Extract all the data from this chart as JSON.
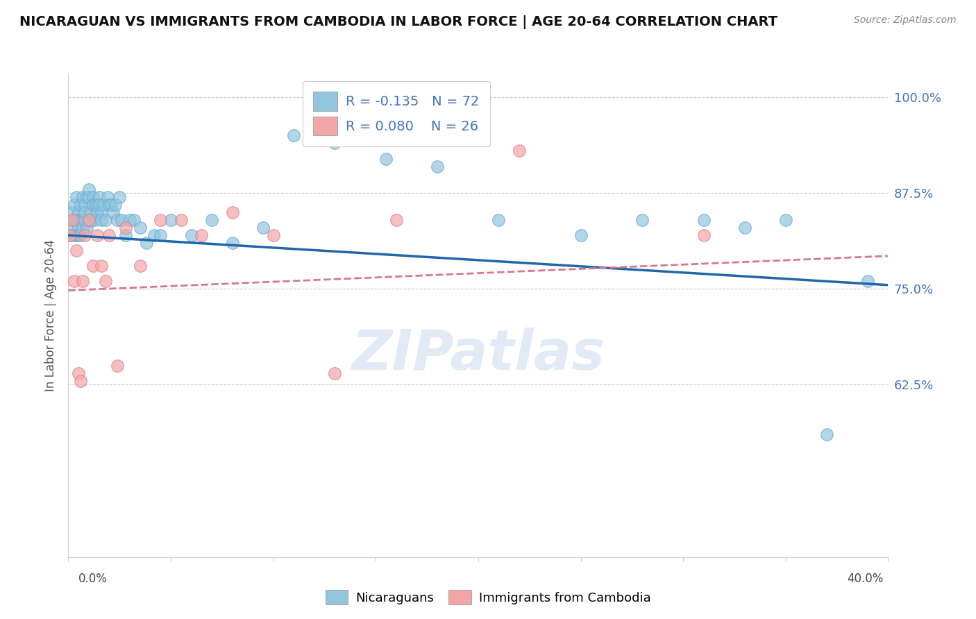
{
  "title": "NICARAGUAN VS IMMIGRANTS FROM CAMBODIA IN LABOR FORCE | AGE 20-64 CORRELATION CHART",
  "source": "Source: ZipAtlas.com",
  "ylabel": "In Labor Force | Age 20-64",
  "ytick_values": [
    1.0,
    0.875,
    0.75,
    0.625
  ],
  "xmin": 0.0,
  "xmax": 0.4,
  "ymin": 0.4,
  "ymax": 1.03,
  "blue_R": -0.135,
  "blue_N": 72,
  "pink_R": 0.08,
  "pink_N": 26,
  "blue_color": "#92c5de",
  "blue_edge_color": "#6baed6",
  "pink_color": "#f4a6a6",
  "pink_edge_color": "#e08090",
  "blue_line_color": "#2166ac",
  "pink_line_color": "#d4788a",
  "text_color": "#4472c4",
  "watermark": "ZIPatlas",
  "blue_line_x0": 0.0,
  "blue_line_y0": 0.82,
  "blue_line_x1": 0.4,
  "blue_line_y1": 0.755,
  "pink_line_x0": 0.0,
  "pink_line_y0": 0.748,
  "pink_line_x1": 0.4,
  "pink_line_y1": 0.793,
  "blue_scatter_x": [
    0.001,
    0.002,
    0.002,
    0.003,
    0.003,
    0.003,
    0.004,
    0.004,
    0.004,
    0.005,
    0.005,
    0.005,
    0.006,
    0.006,
    0.006,
    0.007,
    0.007,
    0.007,
    0.008,
    0.008,
    0.008,
    0.009,
    0.009,
    0.01,
    0.01,
    0.01,
    0.011,
    0.011,
    0.012,
    0.012,
    0.013,
    0.013,
    0.014,
    0.014,
    0.015,
    0.015,
    0.016,
    0.016,
    0.017,
    0.018,
    0.019,
    0.02,
    0.021,
    0.022,
    0.023,
    0.024,
    0.025,
    0.026,
    0.028,
    0.03,
    0.032,
    0.035,
    0.038,
    0.042,
    0.045,
    0.05,
    0.06,
    0.07,
    0.08,
    0.095,
    0.11,
    0.13,
    0.155,
    0.18,
    0.21,
    0.25,
    0.28,
    0.31,
    0.33,
    0.35,
    0.37,
    0.39
  ],
  "blue_scatter_y": [
    0.82,
    0.85,
    0.83,
    0.84,
    0.82,
    0.86,
    0.84,
    0.87,
    0.82,
    0.85,
    0.83,
    0.82,
    0.84,
    0.82,
    0.86,
    0.84,
    0.83,
    0.87,
    0.84,
    0.86,
    0.85,
    0.87,
    0.83,
    0.84,
    0.87,
    0.88,
    0.84,
    0.85,
    0.87,
    0.86,
    0.86,
    0.84,
    0.86,
    0.85,
    0.87,
    0.86,
    0.85,
    0.84,
    0.86,
    0.84,
    0.87,
    0.86,
    0.86,
    0.85,
    0.86,
    0.84,
    0.87,
    0.84,
    0.82,
    0.84,
    0.84,
    0.83,
    0.81,
    0.82,
    0.82,
    0.84,
    0.82,
    0.84,
    0.81,
    0.83,
    0.95,
    0.94,
    0.92,
    0.91,
    0.84,
    0.82,
    0.84,
    0.84,
    0.83,
    0.84,
    0.56,
    0.76
  ],
  "pink_scatter_x": [
    0.001,
    0.002,
    0.003,
    0.004,
    0.005,
    0.006,
    0.007,
    0.008,
    0.01,
    0.012,
    0.014,
    0.016,
    0.018,
    0.02,
    0.024,
    0.028,
    0.035,
    0.045,
    0.055,
    0.065,
    0.08,
    0.1,
    0.13,
    0.16,
    0.22,
    0.31
  ],
  "pink_scatter_y": [
    0.82,
    0.84,
    0.76,
    0.8,
    0.64,
    0.63,
    0.76,
    0.82,
    0.84,
    0.78,
    0.82,
    0.78,
    0.76,
    0.82,
    0.65,
    0.83,
    0.78,
    0.84,
    0.84,
    0.82,
    0.85,
    0.82,
    0.64,
    0.84,
    0.93,
    0.82
  ]
}
